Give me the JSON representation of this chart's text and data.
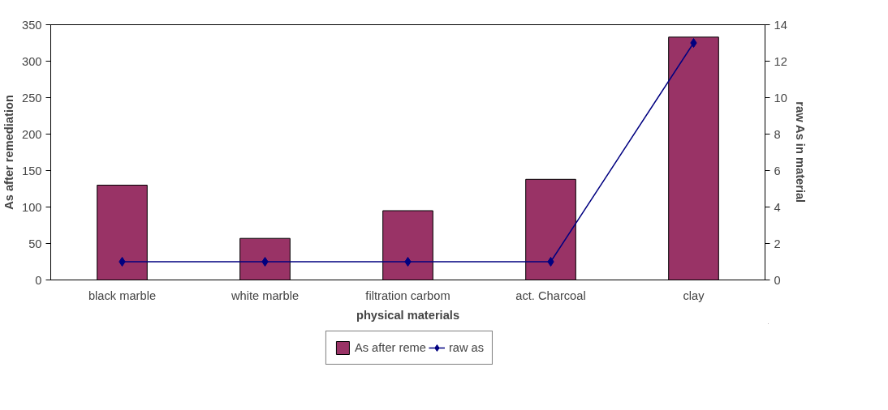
{
  "chart_data": {
    "type": "bar",
    "xlabel": "physical materials",
    "ylabel": "As after remediation",
    "y2label": "raw As in material",
    "categories": [
      "black marble",
      "white marble",
      "filtration carbom",
      "act. Charcoal",
      "clay"
    ],
    "series": [
      {
        "name": "As after reme",
        "color": "#993366",
        "values": [
          130,
          57,
          95,
          138,
          333
        ]
      },
      {
        "name": "raw as",
        "type": "line",
        "axis": "y2",
        "color": "#000080",
        "marker": "diamond",
        "values": [
          1,
          1,
          1,
          1,
          13
        ]
      }
    ],
    "ylim": [
      0,
      350
    ],
    "yticks": [
      0,
      50,
      100,
      150,
      200,
      250,
      300,
      350
    ],
    "y2lim": [
      0,
      14
    ],
    "y2ticks": [
      0,
      2,
      4,
      6,
      8,
      10,
      12,
      14
    ],
    "grid": false,
    "legend": "bottom"
  }
}
